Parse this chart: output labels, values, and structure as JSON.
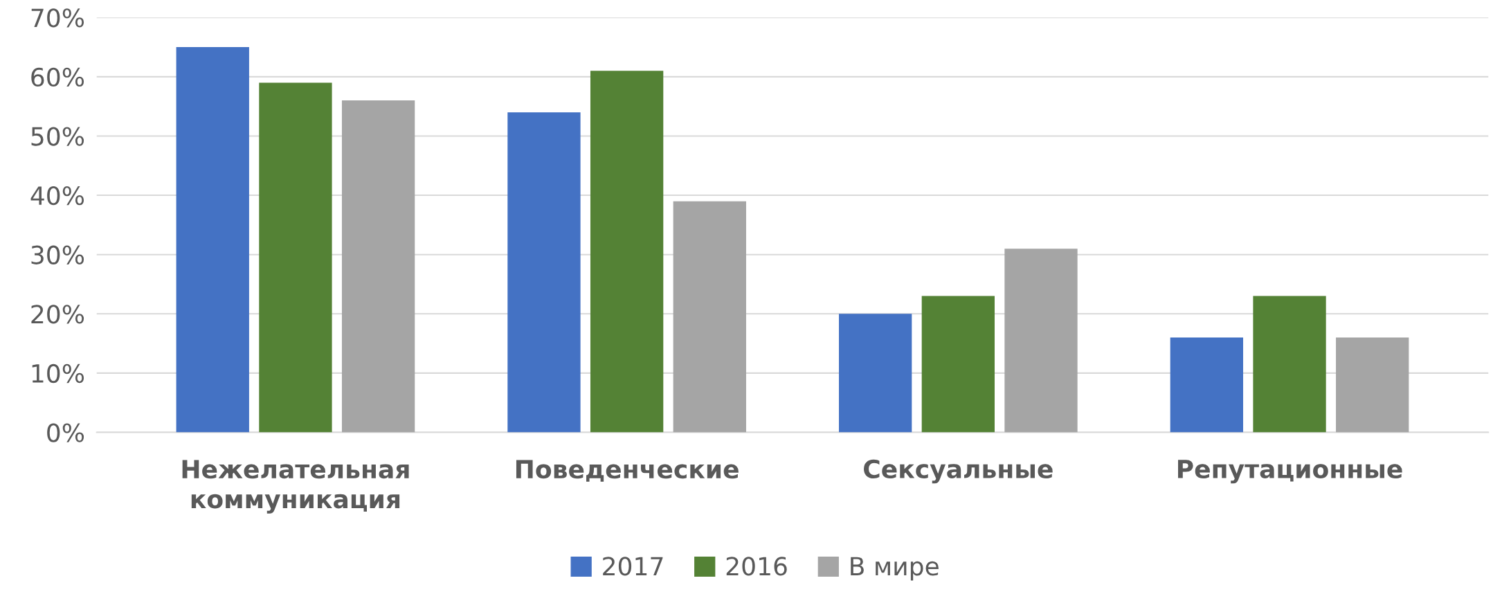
{
  "chart_data": {
    "type": "bar",
    "categories": [
      "Нежелательная\nкоммуникация",
      "Поведенческие",
      "Сексуальные",
      "Репутационные"
    ],
    "series": [
      {
        "name": "2017",
        "color": "#4472c4",
        "values": [
          65,
          54,
          20,
          16
        ]
      },
      {
        "name": "2016",
        "color": "#548235",
        "values": [
          59,
          61,
          23,
          23
        ]
      },
      {
        "name": "В мире",
        "color": "#a5a5a5",
        "values": [
          56,
          39,
          31,
          16
        ]
      }
    ],
    "ylim": [
      0,
      70
    ],
    "yticks": [
      {
        "value": 0,
        "label": "0%"
      },
      {
        "value": 10,
        "label": "10%"
      },
      {
        "value": 20,
        "label": "20%"
      },
      {
        "value": 30,
        "label": "30%"
      },
      {
        "value": 40,
        "label": "40%"
      },
      {
        "value": 50,
        "label": "50%"
      },
      {
        "value": 60,
        "label": "60%"
      },
      {
        "value": 70,
        "label": "70%"
      }
    ],
    "grid": "y",
    "legend": "bottom"
  }
}
